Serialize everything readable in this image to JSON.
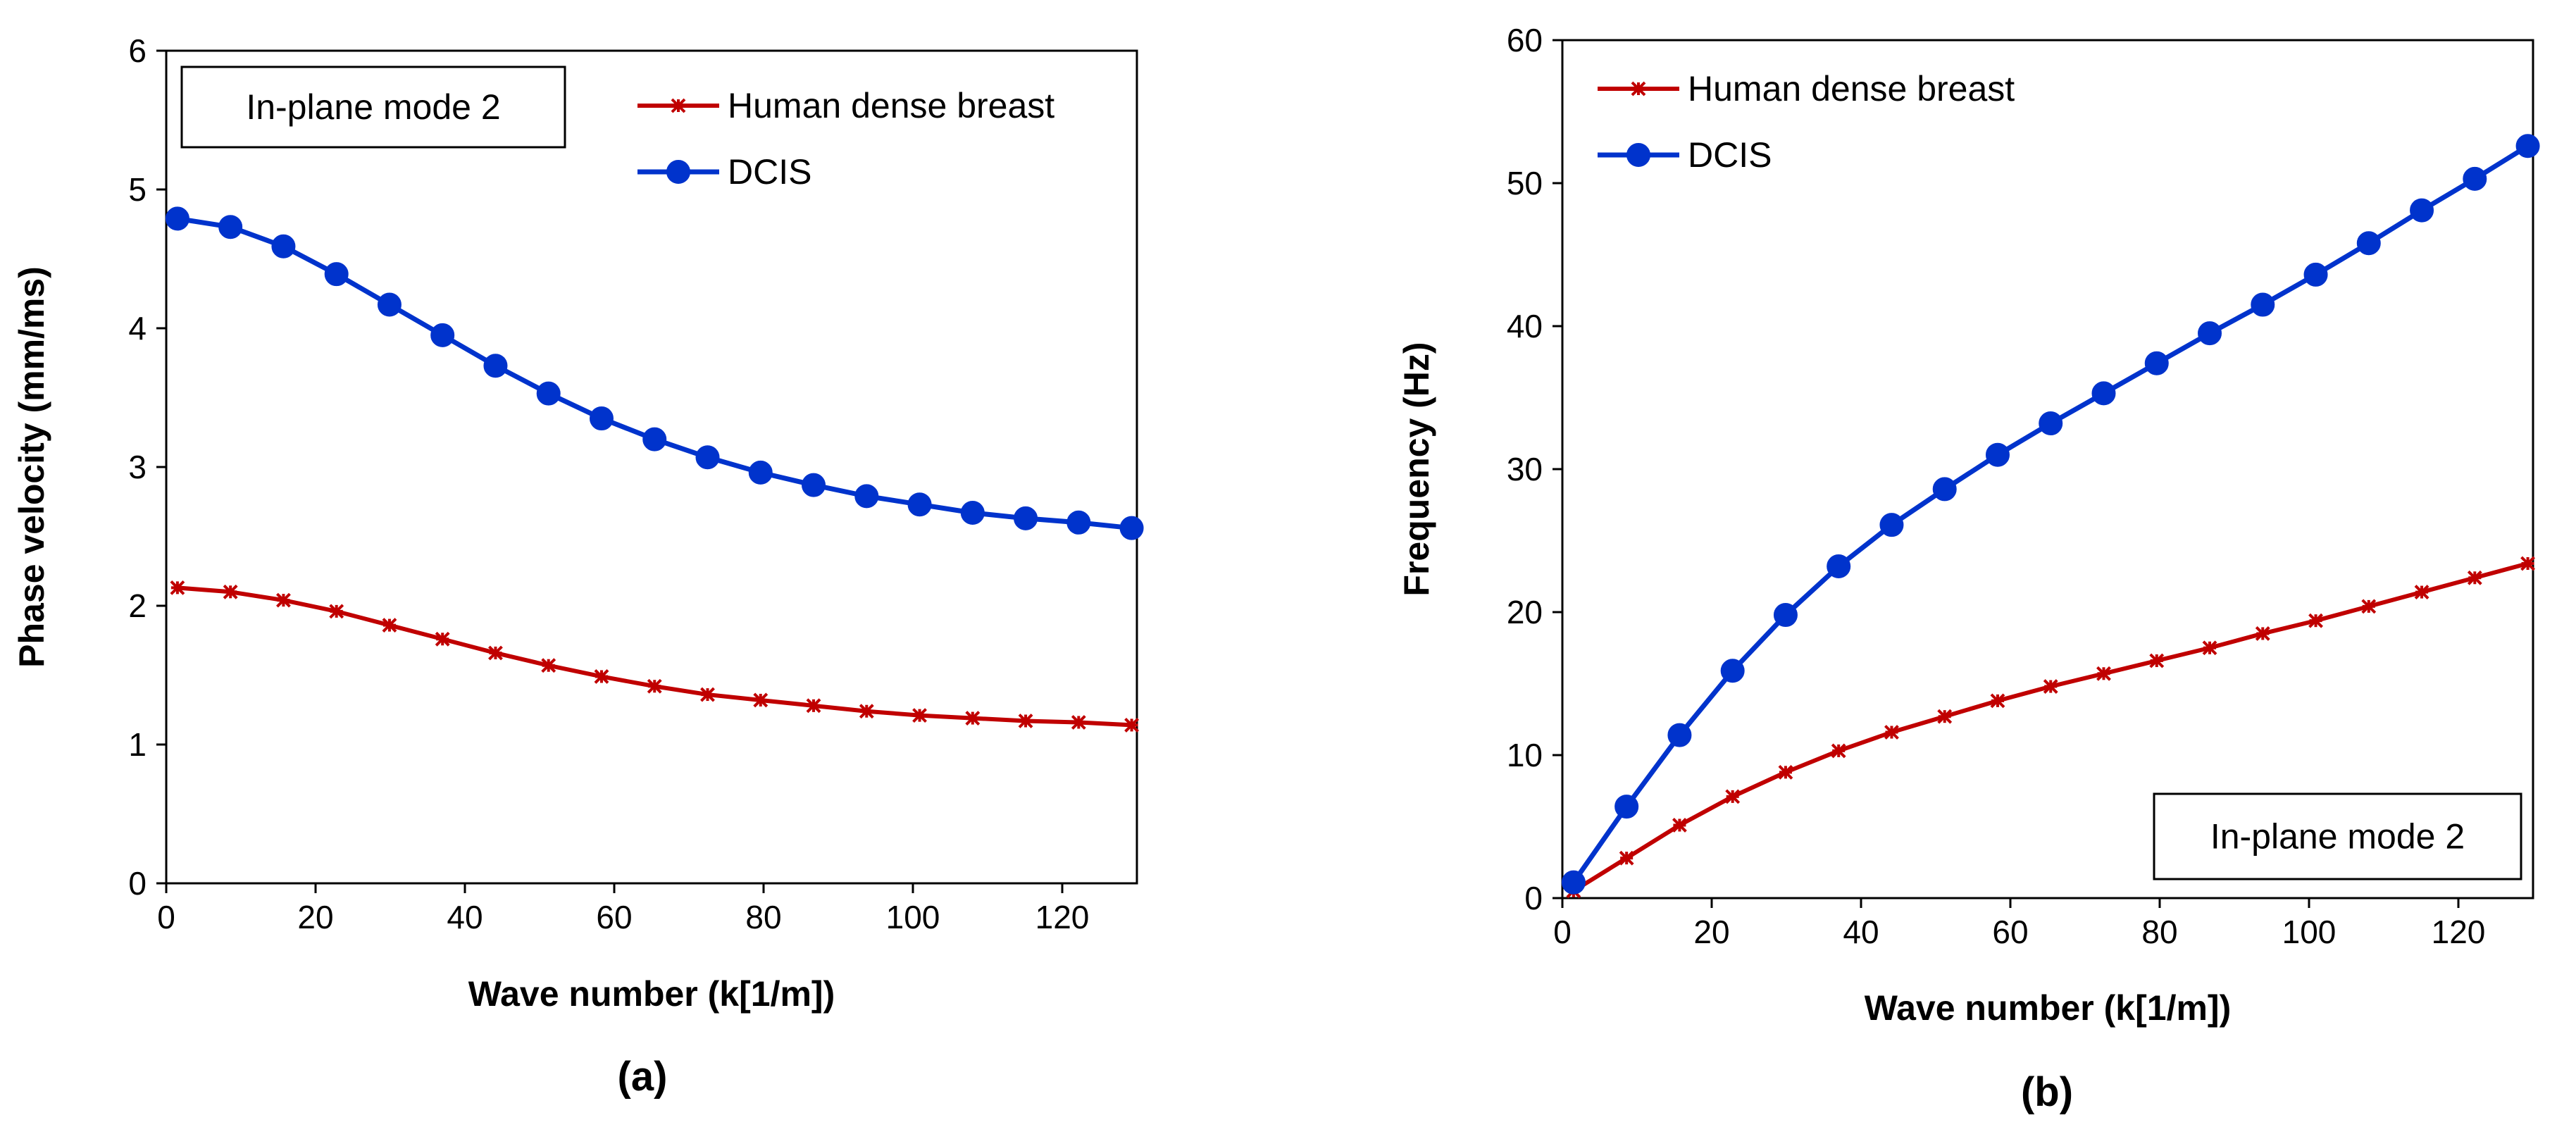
{
  "chart_data": [
    {
      "type": "line",
      "panel_label": "(a)",
      "title": "",
      "annotation": "In-plane mode 2",
      "xlabel": "Wave number (k[1/m])",
      "ylabel": "Phase velocity (mm/ms)",
      "xlim": [
        0,
        130
      ],
      "ylim": [
        0,
        6
      ],
      "xticks": [
        0,
        20,
        40,
        60,
        80,
        100,
        120
      ],
      "yticks": [
        0,
        1,
        2,
        3,
        4,
        5,
        6
      ],
      "legend_position": "top-right",
      "x": [
        1.5,
        8.6,
        15.7,
        22.8,
        29.9,
        37.0,
        44.1,
        51.2,
        58.3,
        65.4,
        72.5,
        79.6,
        86.7,
        93.8,
        100.9,
        108.0,
        115.1,
        122.2,
        129.3
      ],
      "series": [
        {
          "name": "Human dense breast",
          "color": "#c00000",
          "marker": "asterisk",
          "values": [
            2.13,
            2.1,
            2.04,
            1.96,
            1.86,
            1.76,
            1.66,
            1.57,
            1.49,
            1.42,
            1.36,
            1.32,
            1.28,
            1.24,
            1.21,
            1.19,
            1.17,
            1.16,
            1.14
          ]
        },
        {
          "name": "DCIS",
          "color": "#0033cc",
          "marker": "circle",
          "values": [
            4.79,
            4.73,
            4.59,
            4.39,
            4.17,
            3.95,
            3.73,
            3.53,
            3.35,
            3.2,
            3.07,
            2.96,
            2.87,
            2.79,
            2.73,
            2.67,
            2.63,
            2.6,
            2.56
          ]
        }
      ]
    },
    {
      "type": "line",
      "panel_label": "(b)",
      "title": "",
      "annotation": "In-plane mode 2",
      "xlabel": "Wave number (k[1/m])",
      "ylabel": "Frequency (Hz)",
      "xlim": [
        0,
        130
      ],
      "ylim": [
        0,
        60
      ],
      "xticks": [
        0,
        20,
        40,
        60,
        80,
        100,
        120
      ],
      "yticks": [
        0,
        10,
        20,
        30,
        40,
        50,
        60
      ],
      "legend_position": "top-left",
      "x": [
        1.5,
        8.6,
        15.7,
        22.8,
        29.9,
        37.0,
        44.1,
        51.2,
        58.3,
        65.4,
        72.5,
        79.6,
        86.7,
        93.8,
        100.9,
        108.0,
        115.1,
        122.2,
        129.3
      ],
      "series": [
        {
          "name": "Human dense breast",
          "color": "#c00000",
          "marker": "asterisk",
          "values": [
            0.5,
            2.8,
            5.1,
            7.1,
            8.8,
            10.3,
            11.6,
            12.7,
            13.8,
            14.8,
            15.7,
            16.6,
            17.5,
            18.5,
            19.4,
            20.4,
            21.4,
            22.4,
            23.4
          ]
        },
        {
          "name": "DCIS",
          "color": "#0033cc",
          "marker": "circle",
          "values": [
            1.1,
            6.4,
            11.4,
            15.9,
            19.8,
            23.2,
            26.1,
            28.6,
            31.0,
            33.2,
            35.3,
            37.4,
            39.5,
            41.5,
            43.6,
            45.8,
            48.1,
            50.3,
            52.6
          ]
        }
      ]
    }
  ]
}
